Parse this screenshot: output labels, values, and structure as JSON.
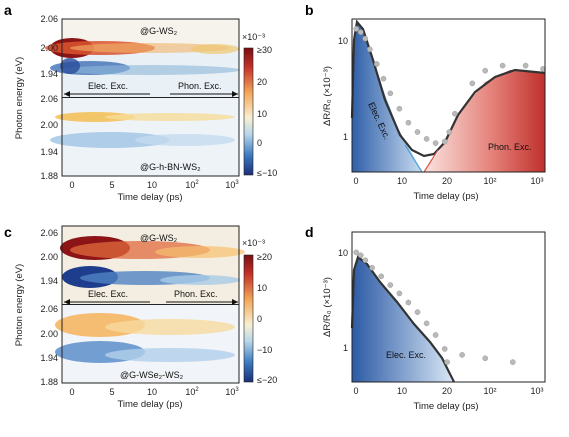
{
  "figure": {
    "panel_labels": [
      "a",
      "b",
      "c",
      "d"
    ],
    "colorbar_symbol": "RdBu_r",
    "colors": {
      "hot": "#a4161a",
      "cold": "#1d3f8f",
      "elec_fill": "#4a7fc1",
      "phon_fill": "#d63c3c",
      "fit_line": "#333333"
    }
  },
  "chart_data": [
    {
      "panel": "a",
      "type": "heatmap",
      "ylabel": "Photon energy (eV)",
      "xlabel": "Time delay (ps)",
      "xticks": [
        "0",
        "5",
        "10",
        "10",
        "10",
        "10"
      ],
      "xtick_exp": [
        "",
        "",
        "",
        "2",
        "3",
        ""
      ],
      "ytick_labels_top": [
        "2.06",
        "2.00",
        "1.94"
      ],
      "ytick_labels_bottom": [
        "2.06",
        "2.00",
        "1.94",
        "1.88"
      ],
      "top_label": "@G-WS₂",
      "bottom_label": "@G-h-BN-WS₂",
      "arrow_left": "Elec. Exc.",
      "arrow_right": "Phon. Exc.",
      "colorbar": {
        "unit": "×10⁻³",
        "ticks": [
          "≥30",
          "20",
          "10",
          "0",
          "≤−10"
        ],
        "range": [
          -10,
          30
        ]
      }
    },
    {
      "panel": "b",
      "type": "scatter",
      "xlabel": "Time delay (ps)",
      "ylabel": "ΔR/R₀ (×10⁻³)",
      "yscale": "log",
      "yticks": [
        "10",
        "1"
      ],
      "xticks": [
        "0",
        "10",
        "20",
        "10²",
        "10³"
      ],
      "regions": [
        "Elec. Exc.",
        "Phon. Exc."
      ],
      "points": [
        [
          0.5,
          12.5
        ],
        [
          1.5,
          11.5
        ],
        [
          2.5,
          9.8
        ],
        [
          3.5,
          7.5
        ],
        [
          5,
          5.2
        ],
        [
          6.5,
          3.6
        ],
        [
          8,
          2.5
        ],
        [
          10,
          1.7
        ],
        [
          12,
          1.2
        ],
        [
          14,
          0.95
        ],
        [
          16,
          0.8
        ],
        [
          18,
          0.72
        ],
        [
          20,
          0.75
        ],
        [
          24,
          0.95
        ],
        [
          30,
          1.5
        ],
        [
          60,
          3.2
        ],
        [
          100,
          4.4
        ],
        [
          200,
          5.0
        ],
        [
          500,
          5.0
        ],
        [
          1000,
          4.6
        ]
      ]
    },
    {
      "panel": "c",
      "type": "heatmap",
      "ylabel": "Photon energy (eV)",
      "xlabel": "Time delay (ps)",
      "xticks": [
        "0",
        "5",
        "10",
        "10",
        "10",
        "10"
      ],
      "xtick_exp": [
        "",
        "",
        "",
        "2",
        "3",
        ""
      ],
      "ytick_labels_top": [
        "2.06",
        "2.00",
        "1.94"
      ],
      "ytick_labels_bottom": [
        "2.06",
        "2.00",
        "1.94",
        "1.88"
      ],
      "top_label": "@G-WS₂",
      "bottom_label": "@G-WSe₂-WS₂",
      "arrow_left": "Elec. Exc.",
      "arrow_right": "Phon. Exc.",
      "colorbar": {
        "unit": "×10⁻³",
        "ticks": [
          "≥20",
          "10",
          "0",
          "−10",
          "≤−20"
        ],
        "range": [
          -20,
          20
        ]
      }
    },
    {
      "panel": "d",
      "type": "scatter",
      "xlabel": "Time delay (ps)",
      "ylabel": "ΔR/R₀ (×10⁻³)",
      "yscale": "log",
      "yticks": [
        "10",
        "1"
      ],
      "xticks": [
        "0",
        "10",
        "20",
        "10²",
        "10³"
      ],
      "regions": [
        "Elec. Exc."
      ],
      "points": [
        [
          0.5,
          8.3
        ],
        [
          1.5,
          7.7
        ],
        [
          2.5,
          6.8
        ],
        [
          4,
          5.6
        ],
        [
          6,
          4.5
        ],
        [
          8,
          3.6
        ],
        [
          10,
          2.9
        ],
        [
          12,
          2.3
        ],
        [
          14,
          1.8
        ],
        [
          16,
          1.35
        ],
        [
          18,
          1.0
        ],
        [
          20,
          0.7
        ],
        [
          22,
          0.5
        ],
        [
          40,
          0.6
        ],
        [
          100,
          0.55
        ],
        [
          300,
          0.5
        ]
      ]
    }
  ]
}
